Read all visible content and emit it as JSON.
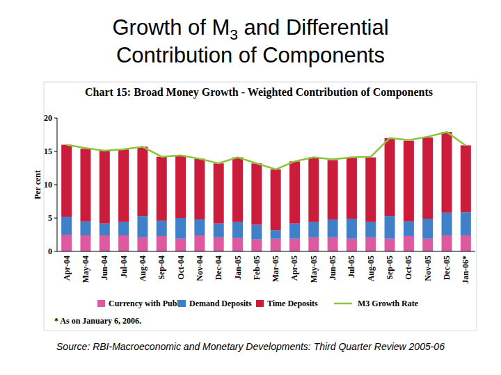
{
  "slide": {
    "title": {
      "line1": {
        "before": "Growth of M",
        "subscript": "3",
        "after": " and Differential"
      },
      "line2": "Contribution of Components"
    },
    "source": "Source: RBI-Macroeconomic and Monetary Developments: Third Quarter Review 2005-06"
  },
  "chart_data": {
    "type": "bar",
    "title": "Chart 15: Broad Money Growth - Weighted Contribution of Components",
    "y_label": "Per cent",
    "footnote": "* As on January 6, 2006.",
    "stacked": true,
    "grid": false,
    "legend": "bottom",
    "categories": [
      "Apr-04",
      "May-04",
      "Jun-04",
      "Jul-04",
      "Aug-04",
      "Sep-04",
      "Oct-04",
      "Nov-04",
      "Dec-04",
      "Jan-05",
      "Feb-05",
      "Mar-05",
      "Apr-05",
      "May-05",
      "Jun-05",
      "Jul-05",
      "Aug-05",
      "Sep-05",
      "Oct-05",
      "Nov-05",
      "Dec-05",
      "Jan-06*"
    ],
    "ylim": [
      0,
      20
    ],
    "yticks": [
      0,
      5,
      10,
      15,
      20
    ],
    "series": [
      {
        "name": "Currency with Public",
        "type": "bar",
        "color": "#dd5aa0",
        "values": [
          2.5,
          2.4,
          2.4,
          2.4,
          2.1,
          2.3,
          1.9,
          2.4,
          2.1,
          2.0,
          1.8,
          1.9,
          1.9,
          2.1,
          2.1,
          1.9,
          2.1,
          1.9,
          2.3,
          1.9,
          2.4,
          2.4
        ]
      },
      {
        "name": "Demand Deposits",
        "type": "bar",
        "color": "#3f80c8",
        "values": [
          2.7,
          2.1,
          1.8,
          2.0,
          3.2,
          2.3,
          3.1,
          2.4,
          2.1,
          2.4,
          2.2,
          1.3,
          2.3,
          2.3,
          2.7,
          3.0,
          2.3,
          3.4,
          2.2,
          3.0,
          3.4,
          3.5
        ]
      },
      {
        "name": "Time Deposits",
        "type": "bar",
        "color": "#cc1c3c",
        "values": [
          10.8,
          10.9,
          10.9,
          10.9,
          10.4,
          9.6,
          9.4,
          9.1,
          9.0,
          9.7,
          9.2,
          9.1,
          9.3,
          9.7,
          8.9,
          9.2,
          9.7,
          11.7,
          12.1,
          12.2,
          12.1,
          10.0
        ]
      },
      {
        "name": "M3 Growth Rate",
        "type": "line",
        "color": "#8cc43c",
        "line_style": "solid",
        "marker": "none",
        "values": [
          16.0,
          15.5,
          15.1,
          15.3,
          15.7,
          14.2,
          14.4,
          13.9,
          13.2,
          14.1,
          13.2,
          12.3,
          13.5,
          14.1,
          13.8,
          14.1,
          14.2,
          17.0,
          16.7,
          17.2,
          17.9,
          15.9
        ]
      }
    ]
  }
}
